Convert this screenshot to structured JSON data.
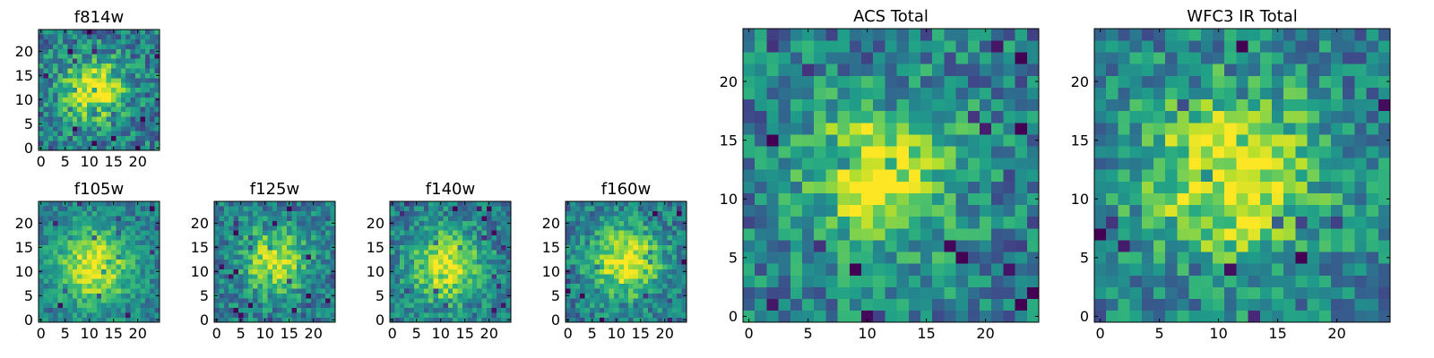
{
  "chart_data": [
    {
      "type": "heatmap",
      "title": "f814w",
      "grid": false,
      "nx": 25,
      "ny": 25,
      "xlim": [
        -0.5,
        24.5
      ],
      "ylim": [
        -0.5,
        24.5
      ],
      "xticks": [
        0,
        5,
        10,
        15,
        20
      ],
      "yticks": [
        0,
        5,
        10,
        15,
        20
      ],
      "colormap": "viridis",
      "peak_center": [
        11,
        12
      ],
      "peak_width": 4.5,
      "noise": 0.3
    },
    {
      "type": "heatmap",
      "title": "f105w",
      "grid": false,
      "nx": 25,
      "ny": 25,
      "xlim": [
        -0.5,
        24.5
      ],
      "ylim": [
        -0.5,
        24.5
      ],
      "xticks": [
        0,
        5,
        10,
        15,
        20
      ],
      "yticks": [
        0,
        5,
        10,
        15,
        20
      ],
      "colormap": "viridis",
      "peak_center": [
        11,
        11
      ],
      "peak_width": 5.5,
      "noise": 0.2
    },
    {
      "type": "heatmap",
      "title": "f125w",
      "grid": false,
      "nx": 25,
      "ny": 25,
      "xlim": [
        -0.5,
        24.5
      ],
      "ylim": [
        -0.5,
        24.5
      ],
      "xticks": [
        0,
        5,
        10,
        15,
        20
      ],
      "yticks": [
        0,
        5,
        10,
        15,
        20
      ],
      "colormap": "viridis",
      "peak_center": [
        12,
        12
      ],
      "peak_width": 4.5,
      "noise": 0.25
    },
    {
      "type": "heatmap",
      "title": "f140w",
      "grid": false,
      "nx": 25,
      "ny": 25,
      "xlim": [
        -0.5,
        24.5
      ],
      "ylim": [
        -0.5,
        24.5
      ],
      "xticks": [
        0,
        5,
        10,
        15,
        20
      ],
      "yticks": [
        0,
        5,
        10,
        15,
        20
      ],
      "colormap": "viridis",
      "peak_center": [
        11,
        11
      ],
      "peak_width": 5.0,
      "noise": 0.25
    },
    {
      "type": "heatmap",
      "title": "f160w",
      "grid": false,
      "nx": 25,
      "ny": 25,
      "xlim": [
        -0.5,
        24.5
      ],
      "ylim": [
        -0.5,
        24.5
      ],
      "xticks": [
        0,
        5,
        10,
        15,
        20
      ],
      "yticks": [
        0,
        5,
        10,
        15,
        20
      ],
      "colormap": "viridis",
      "peak_center": [
        12,
        12
      ],
      "peak_width": 5.0,
      "noise": 0.25
    },
    {
      "type": "heatmap",
      "title": "ACS Total",
      "grid": false,
      "nx": 25,
      "ny": 25,
      "xlim": [
        -0.5,
        24.5
      ],
      "ylim": [
        -0.5,
        24.5
      ],
      "xticks": [
        0,
        5,
        10,
        15,
        20
      ],
      "yticks": [
        0,
        5,
        10,
        15,
        20
      ],
      "colormap": "viridis",
      "peak_center": [
        11,
        12
      ],
      "peak_width": 4.5,
      "noise": 0.3
    },
    {
      "type": "heatmap",
      "title": "WFC3 IR Total",
      "grid": false,
      "nx": 25,
      "ny": 25,
      "xlim": [
        -0.5,
        24.5
      ],
      "ylim": [
        -0.5,
        24.5
      ],
      "xticks": [
        0,
        5,
        10,
        15,
        20
      ],
      "yticks": [
        0,
        5,
        10,
        15,
        20
      ],
      "colormap": "viridis",
      "peak_center": [
        11,
        12
      ],
      "peak_width": 5.5,
      "noise": 0.28
    }
  ]
}
